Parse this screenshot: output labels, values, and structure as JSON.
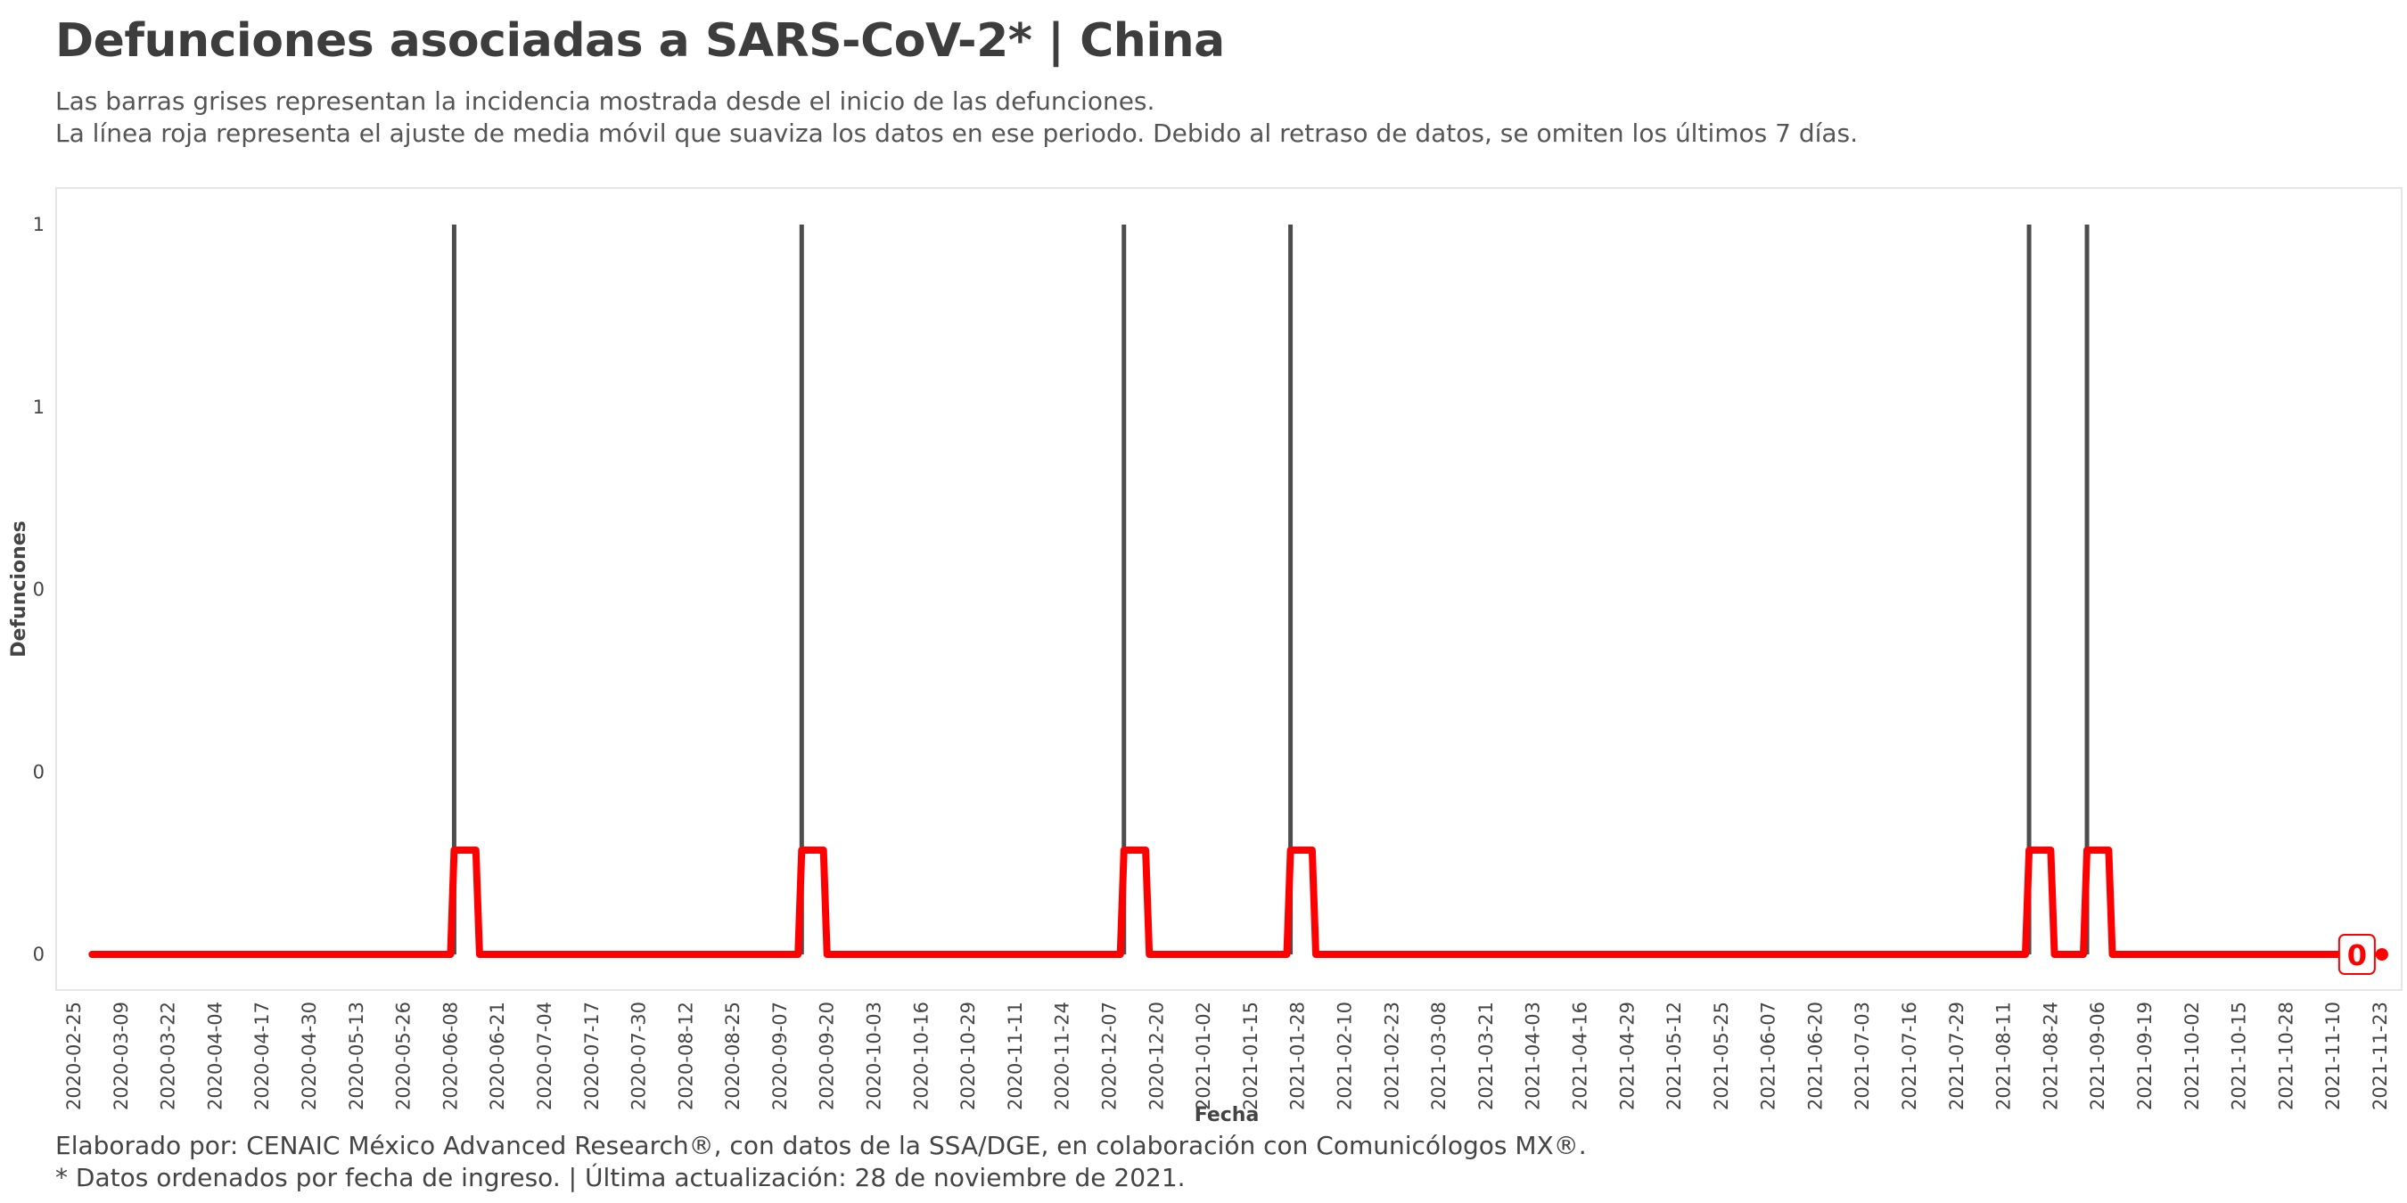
{
  "header": {
    "title": "Defunciones asociadas a SARS-CoV-2* | China",
    "subtitle_line1": "Las barras grises representan la incidencia mostrada desde el inicio de las defunciones.",
    "subtitle_line2": "La línea roja representa el ajuste de media móvil que suaviza los datos en ese periodo. Debido al retraso de datos, se omiten los últimos 7 días."
  },
  "footer": {
    "caption_line1": "Elaborado por: CENAIC México Advanced Research®, con datos de la SSA/DGE, en colaboración con Comunicólogos MX®.",
    "caption_line2": "* Datos ordenados por fecha de ingreso. | Última actualización: 28 de noviembre de 2021."
  },
  "colors": {
    "bar": "#4d4d4d",
    "moving_average": "#ff0000",
    "panel_border": "#e6e6e6",
    "text": "#3d3d3d"
  },
  "chart_data": {
    "type": "bar",
    "xlabel": "Fecha",
    "ylabel": "Defunciones",
    "x_range": [
      "2020-02-25",
      "2021-11-23"
    ],
    "ylim": [
      0,
      1
    ],
    "y_ticks": [
      0,
      0.25,
      0.5,
      0.75,
      1
    ],
    "y_tick_labels": [
      "0",
      "0",
      "0",
      "1",
      "1"
    ],
    "x_tick_labels": [
      "2020-02-25",
      "2020-03-09",
      "2020-03-22",
      "2020-04-04",
      "2020-04-17",
      "2020-04-30",
      "2020-05-13",
      "2020-05-26",
      "2020-06-08",
      "2020-06-21",
      "2020-07-04",
      "2020-07-17",
      "2020-07-30",
      "2020-08-12",
      "2020-08-25",
      "2020-09-07",
      "2020-09-20",
      "2020-10-03",
      "2020-10-16",
      "2020-10-29",
      "2020-11-11",
      "2020-11-24",
      "2020-12-07",
      "2020-12-20",
      "2021-01-02",
      "2021-01-15",
      "2021-01-28",
      "2021-02-10",
      "2021-02-23",
      "2021-03-08",
      "2021-03-21",
      "2021-04-03",
      "2021-04-16",
      "2021-04-29",
      "2021-05-12",
      "2021-05-25",
      "2021-06-07",
      "2021-06-20",
      "2021-07-03",
      "2021-07-16",
      "2021-07-29",
      "2021-08-11",
      "2021-08-24",
      "2021-09-06",
      "2021-09-19",
      "2021-10-02",
      "2021-10-15",
      "2021-10-28",
      "2021-11-10",
      "2021-11-23"
    ],
    "series": [
      {
        "kind": "bars",
        "dates": [
          "2020-06-09",
          "2020-09-13",
          "2020-12-11",
          "2021-01-26",
          "2021-08-18",
          "2021-09-03"
        ],
        "values": [
          1,
          1,
          1,
          1,
          1,
          1
        ]
      },
      {
        "kind": "moving_average",
        "window_days": 7,
        "plateau_value": 0.1429,
        "start_date": "2020-03-01",
        "end_date": "2021-11-21"
      }
    ],
    "end_label": "0"
  }
}
